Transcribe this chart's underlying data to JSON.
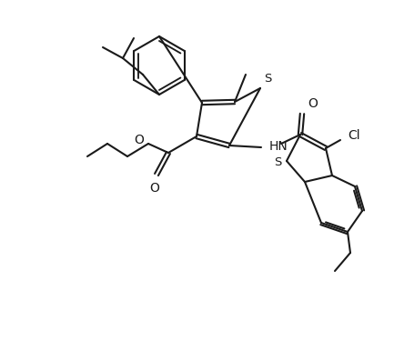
{
  "bg_color": "#ffffff",
  "line_color": "#1a1a1a",
  "lw": 1.5,
  "figsize": [
    4.33,
    3.75
  ],
  "dpi": 100,
  "S_label": "S",
  "S2_label": "S",
  "O_label": "O",
  "O2_label": "O",
  "HN_label": "HN",
  "Cl_label": "Cl"
}
